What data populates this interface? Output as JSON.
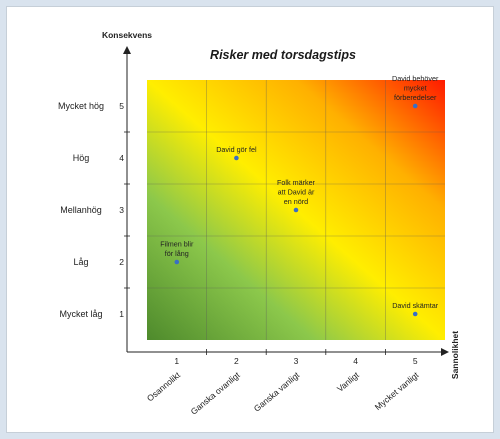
{
  "chart_data": {
    "type": "scatter",
    "title": "Risker med torsdagstips",
    "ylabel": "Konsekvens",
    "xlabel": "Sannolikhet",
    "xlim": [
      0.5,
      5.5
    ],
    "ylim": [
      0.5,
      5.5
    ],
    "x_ticks": [
      1,
      2,
      3,
      4,
      5
    ],
    "y_ticks": [
      1,
      2,
      3,
      4,
      5
    ],
    "x_categories": [
      "Osannolikt",
      "Ganska ovanligt",
      "Ganska vanligt",
      "Vanligt",
      "Mycket vanligt"
    ],
    "y_categories": [
      "Mycket låg",
      "Låg",
      "Mellanhög",
      "Hög",
      "Mycket hög"
    ],
    "grid": true,
    "background": "gradient green (bottom-left) to yellow to red (top-right)",
    "colors": {
      "low": "#4e8a2c",
      "mid_green": "#8cc84b",
      "yellow": "#ffee00",
      "orange": "#ffb000",
      "red": "#ff1a00",
      "point": "#3a6fc4"
    },
    "points": [
      {
        "x": 1.0,
        "y": 2.0,
        "label": "Filmen blir för lång"
      },
      {
        "x": 2.0,
        "y": 4.0,
        "label": "David gör fel"
      },
      {
        "x": 3.0,
        "y": 3.0,
        "label": "Folk märker att David är en nörd"
      },
      {
        "x": 5.0,
        "y": 5.0,
        "label": "David behöver mycket förberedelser"
      },
      {
        "x": 5.0,
        "y": 1.0,
        "label": "David skämtar"
      }
    ]
  }
}
